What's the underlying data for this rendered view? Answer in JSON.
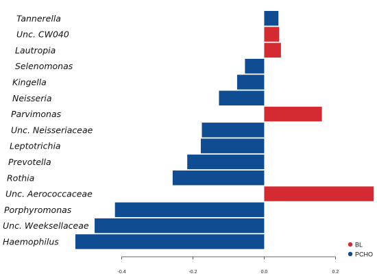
{
  "chart_data": {
    "type": "bar",
    "orientation": "horizontal",
    "categories": [
      "Tannerella",
      "Unc. CW040",
      "Lautropia",
      "Selenomonas",
      "Kingella",
      "Neisseria",
      "Parvimonas",
      "Unc. Neisseriaceae",
      "Leptotrichia",
      "Prevotella",
      "Rothia",
      "Unc. Aerococcaceae",
      "Porphyromonas",
      "Unc. Weeksellaceae",
      "Haemophilus"
    ],
    "values": [
      0.04,
      0.042,
      0.047,
      -0.054,
      -0.076,
      -0.127,
      0.162,
      -0.175,
      -0.178,
      -0.216,
      -0.257,
      0.307,
      -0.419,
      -0.476,
      -0.53
    ],
    "groups": [
      "PCHO",
      "BL",
      "BL",
      "PCHO",
      "PCHO",
      "PCHO",
      "BL",
      "PCHO",
      "PCHO",
      "PCHO",
      "PCHO",
      "BL",
      "PCHO",
      "PCHO",
      "PCHO"
    ],
    "xticks": [
      -0.4,
      -0.2,
      0.0,
      0.2
    ],
    "xtick_labels": [
      "-0.4",
      "-0.2",
      "0.0",
      "0.2"
    ],
    "xlim": [
      -0.53,
      0.307
    ],
    "legend": {
      "position": "bottom-right",
      "entries": [
        {
          "name": "BL",
          "color": "#d42a32"
        },
        {
          "name": "PCHO",
          "color": "#0f4c91"
        }
      ]
    },
    "colors": {
      "BL": "#d42a32",
      "PCHO": "#0f4c91"
    },
    "title": "",
    "xlabel": "",
    "ylabel": "",
    "grid": false
  }
}
